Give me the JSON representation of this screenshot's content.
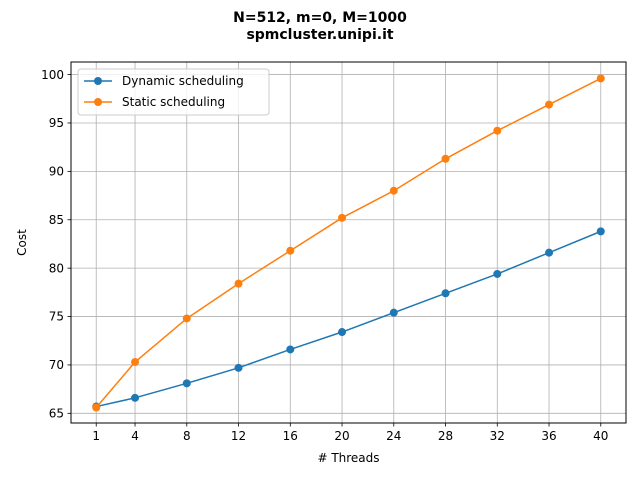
{
  "chart_data": {
    "type": "line",
    "title": "N=512, m=0, M=1000",
    "subtitle": "spmcluster.unipi.it",
    "xlabel": "# Threads",
    "ylabel": "Cost",
    "x": [
      1,
      4,
      8,
      12,
      16,
      20,
      24,
      28,
      32,
      36,
      40
    ],
    "xticks": [
      1,
      4,
      8,
      12,
      16,
      20,
      24,
      28,
      32,
      36,
      40
    ],
    "yticks": [
      65,
      70,
      75,
      80,
      85,
      90,
      95,
      100
    ],
    "xlim": [
      -0.95,
      41.95
    ],
    "ylim": [
      64.0,
      101.3
    ],
    "grid": true,
    "legend_position": "top-left",
    "series": [
      {
        "name": "Dynamic scheduling",
        "color": "#1f77b4",
        "values": [
          65.7,
          66.6,
          68.1,
          69.7,
          71.6,
          73.4,
          75.4,
          77.4,
          79.4,
          81.6,
          83.8
        ]
      },
      {
        "name": "Static scheduling",
        "color": "#ff7f0e",
        "values": [
          65.6,
          70.3,
          74.8,
          78.4,
          81.8,
          85.2,
          88.0,
          91.3,
          94.2,
          96.9,
          99.6
        ]
      }
    ]
  }
}
